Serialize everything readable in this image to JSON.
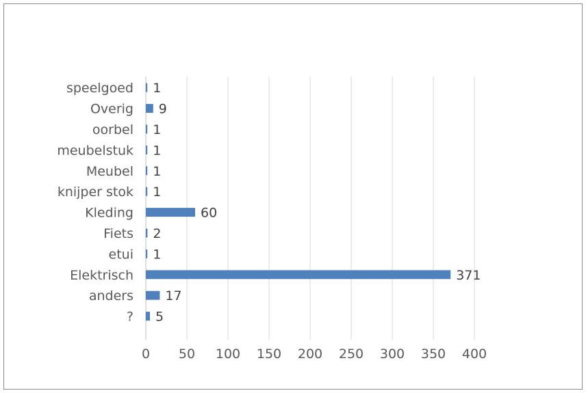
{
  "chart_data": {
    "type": "bar",
    "orientation": "horizontal",
    "categories": [
      "speelgoed",
      "Overig",
      "oorbel",
      "meubelstuk",
      "Meubel",
      "knijper stok",
      "Kleding",
      "Fiets",
      "etui",
      "Elektrisch",
      "anders",
      "?"
    ],
    "values": [
      1,
      9,
      1,
      1,
      1,
      1,
      60,
      2,
      1,
      371,
      17,
      5
    ],
    "xlim": [
      0,
      400
    ],
    "xticks": [
      0,
      50,
      100,
      150,
      200,
      250,
      300,
      350,
      400
    ],
    "grid": true,
    "bar_color": "#4f81bd",
    "title": "",
    "xlabel": "",
    "ylabel": ""
  }
}
